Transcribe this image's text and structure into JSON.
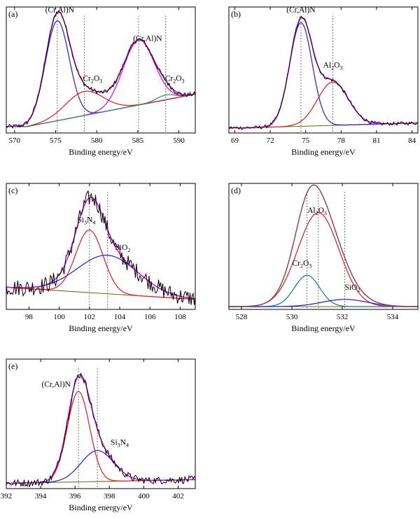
{
  "chart_data": [
    {
      "type": "line",
      "panel_label": "(a)",
      "xlabel": "Binding energy/eV",
      "xlim": [
        569,
        592
      ],
      "xticks": [
        570,
        575,
        580,
        585,
        590
      ],
      "ylim": [
        0,
        1
      ],
      "grid": false,
      "baseline": {
        "x": [
          571.5,
          592
        ],
        "y": [
          0.03,
          0.3
        ]
      },
      "peaks": [
        {
          "color": "#1a1aff",
          "center": 575.2,
          "height": 0.83,
          "sigma": 1.45
        },
        {
          "color": "#e31a1c",
          "center": 578.5,
          "height": 0.2,
          "sigma": 2.3
        },
        {
          "color": "#e600e6",
          "center": 585.1,
          "height": 0.54,
          "sigma": 1.9
        },
        {
          "color": "#2e8b57",
          "center": 588.4,
          "height": 0.04,
          "sigma": 1.1
        }
      ],
      "vlines": [
        575.2,
        578.5,
        585.1,
        588.4
      ],
      "annotations": [
        {
          "base": "(Cr,Al)N",
          "sub": "",
          "x": 575.5,
          "y": 0.98
        },
        {
          "base": "Cr",
          "sub": "2",
          "rest": "O",
          "sub2": "3",
          "x": 579.5,
          "y": 0.41
        },
        {
          "base": "(Cr,Al)N",
          "sub": "",
          "x": 586.2,
          "y": 0.74
        },
        {
          "base": "Cr",
          "sub": "2",
          "rest": "O",
          "sub2": "3",
          "x": 589.5,
          "y": 0.41
        }
      ]
    },
    {
      "type": "line",
      "panel_label": "(b)",
      "xlabel": "Binding energy/eV",
      "xlim": [
        68.5,
        84.5
      ],
      "xticks": [
        69,
        72,
        75,
        78,
        81,
        84
      ],
      "ylim": [
        0,
        1
      ],
      "grid": false,
      "baseline": {
        "x": [
          70,
          84.5
        ],
        "y": [
          0.02,
          0.06
        ]
      },
      "peaks": [
        {
          "color": "#1a1aff",
          "center": 74.6,
          "height": 0.86,
          "sigma": 0.95
        },
        {
          "color": "#e31a1c",
          "center": 77.3,
          "height": 0.36,
          "sigma": 1.3
        }
      ],
      "vlines": [
        74.6,
        77.3
      ],
      "annotations": [
        {
          "base": "(Cr,Al)N",
          "sub": "",
          "x": 74.6,
          "y": 0.98
        },
        {
          "base": "Al",
          "sub": "2",
          "rest": "O",
          "sub2": "3",
          "x": 77.3,
          "y": 0.52
        }
      ]
    },
    {
      "type": "line",
      "panel_label": "(c)",
      "xlabel": "Binding energy/eV",
      "xlim": [
        96.5,
        109
      ],
      "xticks": [
        98,
        100,
        102,
        104,
        106,
        108
      ],
      "ylim": [
        0,
        1
      ],
      "grid": false,
      "baseline": {
        "x": [
          96.5,
          109
        ],
        "y": [
          0.16,
          0.06
        ]
      },
      "peaks": [
        {
          "color": "#e31a1c",
          "center": 102.0,
          "height": 0.52,
          "sigma": 0.9
        },
        {
          "color": "#1a1aff",
          "center": 103.2,
          "height": 0.32,
          "sigma": 2.0
        }
      ],
      "vlines": [
        102.0,
        103.2
      ],
      "annotations": [
        {
          "base": "Si",
          "sub": "3",
          "rest": "N",
          "sub2": "4",
          "x": 101.8,
          "y": 0.7
        },
        {
          "base": "SiO",
          "sub": "2",
          "rest": "",
          "sub2": "",
          "x": 104.2,
          "y": 0.47
        }
      ]
    },
    {
      "type": "line",
      "panel_label": "(d)",
      "xlabel": "Binding energy/eV",
      "xlim": [
        527.5,
        535
      ],
      "xticks": [
        528,
        530,
        532,
        534
      ],
      "ylim": [
        0,
        1
      ],
      "grid": false,
      "baseline": {
        "x": [
          527.5,
          535
        ],
        "y": [
          0.0,
          0.0
        ]
      },
      "peaks": [
        {
          "color": "#e31a1c",
          "center": 531.05,
          "height": 0.78,
          "sigma": 0.82
        },
        {
          "color": "#137a7a",
          "center": 530.6,
          "height": 0.26,
          "sigma": 0.5
        },
        {
          "color": "#1a1aff",
          "center": 532.1,
          "height": 0.06,
          "sigma": 0.9
        }
      ],
      "vlines": [
        531.05,
        530.6,
        532.1
      ],
      "annotations": [
        {
          "base": "Al",
          "sub": "2",
          "rest": "O",
          "sub2": "3",
          "x": 531.0,
          "y": 0.78
        },
        {
          "base": "Cr",
          "sub": "2",
          "rest": "O",
          "sub2": "3",
          "x": 530.4,
          "y": 0.34
        },
        {
          "base": "SiO",
          "sub": "2",
          "rest": "",
          "sub2": "",
          "x": 532.4,
          "y": 0.14
        }
      ]
    },
    {
      "type": "line",
      "panel_label": "(e)",
      "xlabel": "Binding energy/eV",
      "xlim": [
        392,
        403
      ],
      "xticks": [
        392,
        394,
        396,
        398,
        400,
        402
      ],
      "ylim": [
        0,
        1
      ],
      "grid": false,
      "baseline": {
        "x": [
          392,
          403
        ],
        "y": [
          0.02,
          0.05
        ]
      },
      "peaks": [
        {
          "color": "#e31a1c",
          "center": 396.2,
          "height": 0.73,
          "sigma": 0.65
        },
        {
          "color": "#1a1aff",
          "center": 397.3,
          "height": 0.25,
          "sigma": 0.95
        }
      ],
      "vlines": [
        396.2,
        397.3
      ],
      "annotations": [
        {
          "base": "(Cr,Al)N",
          "sub": "",
          "x": 394.9,
          "y": 0.8
        },
        {
          "base": "Si",
          "sub": "3",
          "rest": "N",
          "sub2": "4",
          "x": 398.6,
          "y": 0.33
        }
      ]
    }
  ],
  "colors": {
    "raw": "#000000",
    "envelope": "#e600e6",
    "background": "#7a6a10"
  }
}
